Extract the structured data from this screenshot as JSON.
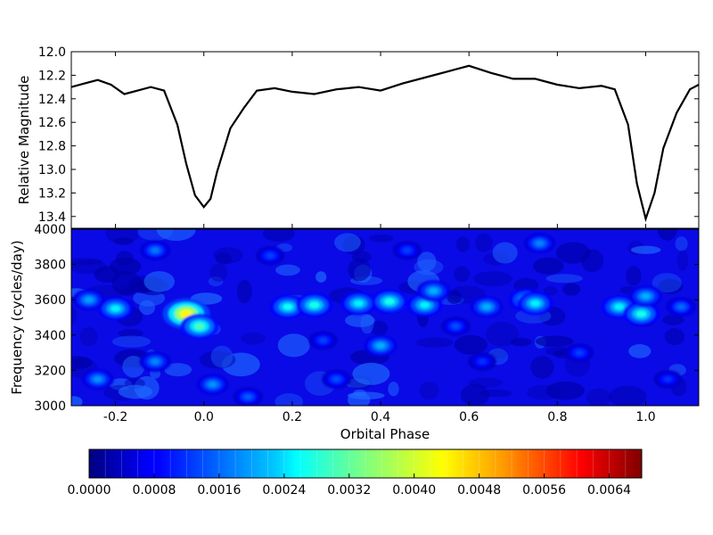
{
  "chart_data": [
    {
      "type": "line",
      "ylabel": "Relative Magnitude",
      "xlim": [
        -0.3,
        1.12
      ],
      "ylim": [
        12.0,
        13.5
      ],
      "y_inverted": true,
      "grid": false,
      "yticks": [
        "12.0",
        "12.2",
        "12.4",
        "12.6",
        "12.8",
        "13.0",
        "13.2",
        "13.4"
      ],
      "series": [
        {
          "x": [
            -0.3,
            -0.27,
            -0.24,
            -0.21,
            -0.18,
            -0.15,
            -0.12,
            -0.09,
            -0.06,
            -0.04,
            -0.02,
            0.0,
            0.015,
            0.03,
            0.06,
            0.09,
            0.12,
            0.16,
            0.2,
            0.25,
            0.3,
            0.35,
            0.4,
            0.45,
            0.5,
            0.55,
            0.6,
            0.65,
            0.7,
            0.75,
            0.8,
            0.85,
            0.9,
            0.93,
            0.96,
            0.98,
            1.0,
            1.02,
            1.04,
            1.07,
            1.1,
            1.12
          ],
          "y": [
            12.3,
            12.27,
            12.24,
            12.28,
            12.36,
            12.33,
            12.3,
            12.33,
            12.62,
            12.95,
            13.22,
            13.32,
            13.25,
            13.02,
            12.65,
            12.48,
            12.33,
            12.31,
            12.34,
            12.36,
            12.32,
            12.3,
            12.33,
            12.27,
            12.22,
            12.17,
            12.12,
            12.18,
            12.23,
            12.23,
            12.28,
            12.31,
            12.29,
            12.32,
            12.62,
            13.12,
            13.42,
            13.2,
            12.82,
            12.52,
            12.32,
            12.28
          ]
        }
      ]
    },
    {
      "type": "heatmap",
      "xlabel": "Orbital Phase",
      "ylabel": "Frequency (cycles/day)",
      "xlim": [
        -0.3,
        1.12
      ],
      "ylim": [
        3000,
        4000
      ],
      "xticks": [
        "-0.2",
        "0.0",
        "0.2",
        "0.4",
        "0.6",
        "0.8",
        "1.0"
      ],
      "yticks": [
        "3000",
        "3200",
        "3400",
        "3600",
        "3800",
        "4000"
      ],
      "colorscale": "jet",
      "zlim": [
        0.0,
        0.0068
      ],
      "colorbar_ticks": [
        "0.0000",
        "0.0008",
        "0.0016",
        "0.0024",
        "0.0032",
        "0.0040",
        "0.0048",
        "0.0056",
        "0.0064"
      ],
      "hotspots": [
        {
          "x": -0.04,
          "y": 3520,
          "z": 0.0044
        },
        {
          "x": -0.01,
          "y": 3450,
          "z": 0.003
        },
        {
          "x": -0.2,
          "y": 3550,
          "z": 0.0025
        },
        {
          "x": -0.26,
          "y": 3600,
          "z": 0.002
        },
        {
          "x": -0.24,
          "y": 3150,
          "z": 0.0019
        },
        {
          "x": -0.11,
          "y": 3250,
          "z": 0.0018
        },
        {
          "x": -0.11,
          "y": 3880,
          "z": 0.0017
        },
        {
          "x": 0.02,
          "y": 3120,
          "z": 0.0019
        },
        {
          "x": 0.19,
          "y": 3560,
          "z": 0.0026
        },
        {
          "x": 0.25,
          "y": 3570,
          "z": 0.0027
        },
        {
          "x": 0.35,
          "y": 3580,
          "z": 0.0025
        },
        {
          "x": 0.42,
          "y": 3590,
          "z": 0.0027
        },
        {
          "x": 0.4,
          "y": 3340,
          "z": 0.0021
        },
        {
          "x": 0.5,
          "y": 3570,
          "z": 0.0025
        },
        {
          "x": 0.52,
          "y": 3650,
          "z": 0.0021
        },
        {
          "x": 0.64,
          "y": 3560,
          "z": 0.0021
        },
        {
          "x": 0.73,
          "y": 3600,
          "z": 0.0024
        },
        {
          "x": 0.75,
          "y": 3580,
          "z": 0.0025
        },
        {
          "x": 0.76,
          "y": 3920,
          "z": 0.0018
        },
        {
          "x": 0.94,
          "y": 3560,
          "z": 0.0025
        },
        {
          "x": 0.99,
          "y": 3520,
          "z": 0.0027
        },
        {
          "x": 1.0,
          "y": 3620,
          "z": 0.0021
        },
        {
          "x": 1.08,
          "y": 3560,
          "z": 0.0016
        },
        {
          "x": 0.1,
          "y": 3050,
          "z": 0.0015
        },
        {
          "x": 0.3,
          "y": 3150,
          "z": 0.0014
        },
        {
          "x": 0.57,
          "y": 3450,
          "z": 0.0014
        },
        {
          "x": 0.85,
          "y": 3300,
          "z": 0.0013
        },
        {
          "x": 0.15,
          "y": 3850,
          "z": 0.0013
        },
        {
          "x": 0.46,
          "y": 3880,
          "z": 0.0013
        },
        {
          "x": 0.27,
          "y": 3370,
          "z": 0.0013
        },
        {
          "x": 1.05,
          "y": 3150,
          "z": 0.0012
        },
        {
          "x": 0.63,
          "y": 3250,
          "z": 0.0012
        }
      ]
    }
  ]
}
